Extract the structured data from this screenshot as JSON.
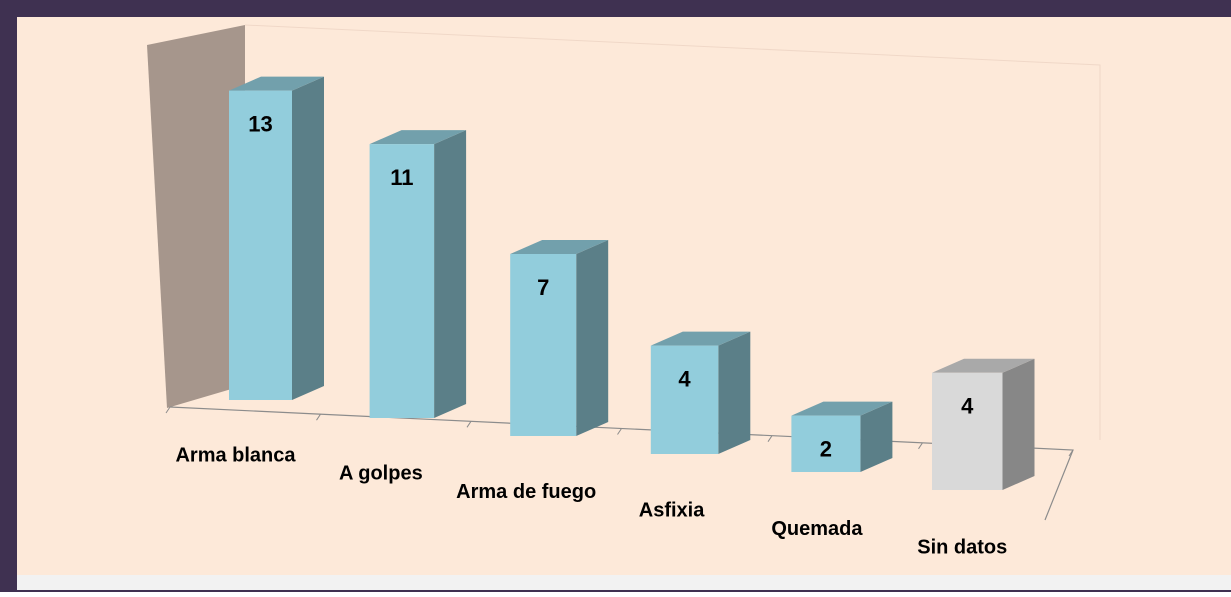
{
  "chart_data": {
    "type": "bar3d",
    "categories": [
      "Arma blanca",
      "A golpes",
      "Arma de fuego",
      "Asfixia",
      "Quemada",
      "Sin datos"
    ],
    "values": [
      13,
      11,
      7,
      4,
      2,
      4
    ],
    "colors": [
      "#92cddc",
      "#92cddc",
      "#92cddc",
      "#92cddc",
      "#92cddc",
      "#d9d9d9"
    ]
  }
}
